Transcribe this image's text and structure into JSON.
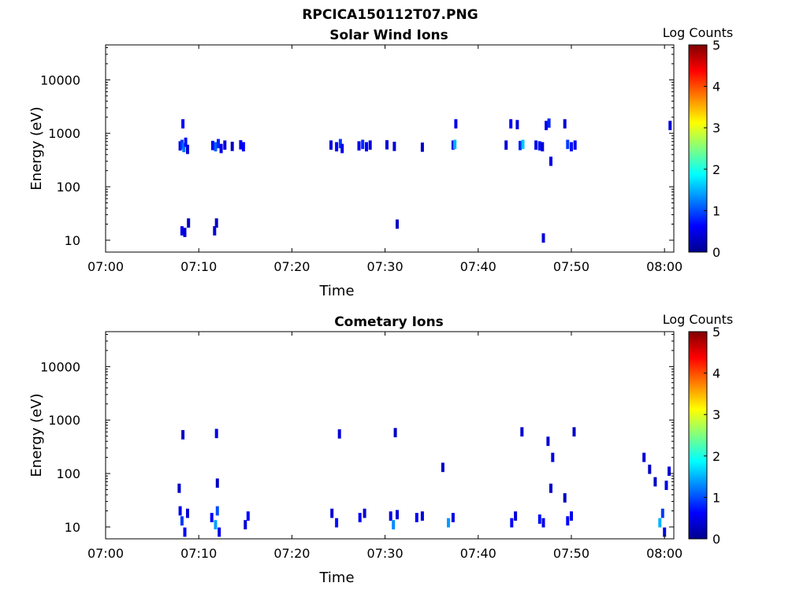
{
  "figure": {
    "title": "RPCICA150112T07.PNG"
  },
  "chart_data": [
    {
      "type": "heatmap",
      "title": "Solar Wind Ions",
      "xlabel": "Time",
      "ylabel": "Energy (eV)",
      "x_ticks": [
        "07:00",
        "07:10",
        "07:20",
        "07:30",
        "07:40",
        "07:50",
        "08:00"
      ],
      "x_range_minutes": [
        0,
        61
      ],
      "y_scale": "log",
      "y_ticks": [
        10,
        100,
        1000,
        10000
      ],
      "y_tick_labels": [
        "10",
        "100",
        "1000",
        "10000"
      ],
      "y_range": [
        6,
        45000
      ],
      "colorbar": {
        "label": "Log Counts",
        "range": [
          0,
          5
        ],
        "ticks": [
          "0",
          "1",
          "2",
          "3",
          "4",
          "5"
        ]
      },
      "grid": false,
      "points": [
        {
          "t": 8.0,
          "e": 580,
          "v": 0.5
        },
        {
          "t": 8.2,
          "e": 620,
          "v": 0.9
        },
        {
          "t": 8.4,
          "e": 540,
          "v": 1.2
        },
        {
          "t": 8.6,
          "e": 680,
          "v": 0.7
        },
        {
          "t": 8.8,
          "e": 500,
          "v": 0.4
        },
        {
          "t": 8.3,
          "e": 1500,
          "v": 0.6
        },
        {
          "t": 8.2,
          "e": 15,
          "v": 0.5
        },
        {
          "t": 8.5,
          "e": 14,
          "v": 0.4
        },
        {
          "t": 8.9,
          "e": 21,
          "v": 0.3
        },
        {
          "t": 11.5,
          "e": 590,
          "v": 0.6
        },
        {
          "t": 11.8,
          "e": 560,
          "v": 1.1
        },
        {
          "t": 12.1,
          "e": 640,
          "v": 0.8
        },
        {
          "t": 12.4,
          "e": 520,
          "v": 0.5
        },
        {
          "t": 12.8,
          "e": 600,
          "v": 0.4
        },
        {
          "t": 11.7,
          "e": 15,
          "v": 0.4
        },
        {
          "t": 11.9,
          "e": 21,
          "v": 0.3
        },
        {
          "t": 13.6,
          "e": 570,
          "v": 0.3
        },
        {
          "t": 14.5,
          "e": 610,
          "v": 0.5
        },
        {
          "t": 14.8,
          "e": 560,
          "v": 0.6
        },
        {
          "t": 24.2,
          "e": 600,
          "v": 0.4
        },
        {
          "t": 24.8,
          "e": 560,
          "v": 0.6
        },
        {
          "t": 25.2,
          "e": 640,
          "v": 0.9
        },
        {
          "t": 25.4,
          "e": 520,
          "v": 0.5
        },
        {
          "t": 27.2,
          "e": 580,
          "v": 0.5
        },
        {
          "t": 27.6,
          "e": 620,
          "v": 0.8
        },
        {
          "t": 28.0,
          "e": 560,
          "v": 0.6
        },
        {
          "t": 28.4,
          "e": 600,
          "v": 0.4
        },
        {
          "t": 30.2,
          "e": 610,
          "v": 0.4
        },
        {
          "t": 31.0,
          "e": 570,
          "v": 0.4
        },
        {
          "t": 31.3,
          "e": 20,
          "v": 0.3
        },
        {
          "t": 34.0,
          "e": 550,
          "v": 0.3
        },
        {
          "t": 37.3,
          "e": 600,
          "v": 0.7
        },
        {
          "t": 37.5,
          "e": 620,
          "v": 1.5
        },
        {
          "t": 37.6,
          "e": 1500,
          "v": 0.5
        },
        {
          "t": 43.0,
          "e": 600,
          "v": 0.4
        },
        {
          "t": 43.5,
          "e": 1500,
          "v": 0.6
        },
        {
          "t": 44.2,
          "e": 1450,
          "v": 0.4
        },
        {
          "t": 44.5,
          "e": 590,
          "v": 0.8
        },
        {
          "t": 44.8,
          "e": 620,
          "v": 1.6
        },
        {
          "t": 46.2,
          "e": 600,
          "v": 0.5
        },
        {
          "t": 46.6,
          "e": 580,
          "v": 0.7
        },
        {
          "t": 46.9,
          "e": 560,
          "v": 0.4
        },
        {
          "t": 47.0,
          "e": 11,
          "v": 0.4
        },
        {
          "t": 47.3,
          "e": 1400,
          "v": 0.5
        },
        {
          "t": 47.6,
          "e": 1550,
          "v": 0.8
        },
        {
          "t": 47.8,
          "e": 300,
          "v": 0.5
        },
        {
          "t": 49.3,
          "e": 1500,
          "v": 0.4
        },
        {
          "t": 49.6,
          "e": 620,
          "v": 0.9
        },
        {
          "t": 50.0,
          "e": 560,
          "v": 0.7
        },
        {
          "t": 50.4,
          "e": 600,
          "v": 0.5
        },
        {
          "t": 60.6,
          "e": 1400,
          "v": 0.4
        }
      ]
    },
    {
      "type": "heatmap",
      "title": "Cometary Ions",
      "xlabel": "Time",
      "ylabel": "Energy (eV)",
      "x_ticks": [
        "07:00",
        "07:10",
        "07:20",
        "07:30",
        "07:40",
        "07:50",
        "08:00"
      ],
      "x_range_minutes": [
        0,
        61
      ],
      "y_scale": "log",
      "y_ticks": [
        10,
        100,
        1000,
        10000
      ],
      "y_tick_labels": [
        "10",
        "100",
        "1000",
        "10000"
      ],
      "y_range": [
        6,
        45000
      ],
      "colorbar": {
        "label": "Log Counts",
        "range": [
          0,
          5
        ],
        "ticks": [
          "0",
          "1",
          "2",
          "3",
          "4",
          "5"
        ]
      },
      "grid": false,
      "points": [
        {
          "t": 8.0,
          "e": 20,
          "v": 0.5
        },
        {
          "t": 8.2,
          "e": 13,
          "v": 0.9
        },
        {
          "t": 8.5,
          "e": 8,
          "v": 0.6
        },
        {
          "t": 8.8,
          "e": 18,
          "v": 0.4
        },
        {
          "t": 8.3,
          "e": 530,
          "v": 0.3
        },
        {
          "t": 7.9,
          "e": 53,
          "v": 0.3
        },
        {
          "t": 11.4,
          "e": 15,
          "v": 0.6
        },
        {
          "t": 11.8,
          "e": 11,
          "v": 1.4
        },
        {
          "t": 12.0,
          "e": 20,
          "v": 1.0
        },
        {
          "t": 12.2,
          "e": 8,
          "v": 0.5
        },
        {
          "t": 11.9,
          "e": 560,
          "v": 0.5
        },
        {
          "t": 12.0,
          "e": 66,
          "v": 0.3
        },
        {
          "t": 15.0,
          "e": 11,
          "v": 0.4
        },
        {
          "t": 15.3,
          "e": 16,
          "v": 0.6
        },
        {
          "t": 24.3,
          "e": 18,
          "v": 0.4
        },
        {
          "t": 24.8,
          "e": 12,
          "v": 0.7
        },
        {
          "t": 25.1,
          "e": 550,
          "v": 0.4
        },
        {
          "t": 27.3,
          "e": 15,
          "v": 0.6
        },
        {
          "t": 27.8,
          "e": 18,
          "v": 0.4
        },
        {
          "t": 30.6,
          "e": 16,
          "v": 0.5
        },
        {
          "t": 30.9,
          "e": 11,
          "v": 1.3
        },
        {
          "t": 31.1,
          "e": 580,
          "v": 0.3
        },
        {
          "t": 31.3,
          "e": 17,
          "v": 0.4
        },
        {
          "t": 33.4,
          "e": 15,
          "v": 0.6
        },
        {
          "t": 34.0,
          "e": 16,
          "v": 0.4
        },
        {
          "t": 36.2,
          "e": 130,
          "v": 0.3
        },
        {
          "t": 36.8,
          "e": 12,
          "v": 1.4
        },
        {
          "t": 37.3,
          "e": 15,
          "v": 0.5
        },
        {
          "t": 43.6,
          "e": 12,
          "v": 0.6
        },
        {
          "t": 44.0,
          "e": 16,
          "v": 0.4
        },
        {
          "t": 44.7,
          "e": 600,
          "v": 0.4
        },
        {
          "t": 46.6,
          "e": 14,
          "v": 0.7
        },
        {
          "t": 47.0,
          "e": 12,
          "v": 0.5
        },
        {
          "t": 47.5,
          "e": 400,
          "v": 0.4
        },
        {
          "t": 48.0,
          "e": 200,
          "v": 0.5
        },
        {
          "t": 47.8,
          "e": 53,
          "v": 0.3
        },
        {
          "t": 49.3,
          "e": 35,
          "v": 0.3
        },
        {
          "t": 49.6,
          "e": 13,
          "v": 0.6
        },
        {
          "t": 50.0,
          "e": 16,
          "v": 0.5
        },
        {
          "t": 50.3,
          "e": 600,
          "v": 0.3
        },
        {
          "t": 57.8,
          "e": 200,
          "v": 0.4
        },
        {
          "t": 58.4,
          "e": 120,
          "v": 0.3
        },
        {
          "t": 59.0,
          "e": 70,
          "v": 0.3
        },
        {
          "t": 59.5,
          "e": 12,
          "v": 1.5
        },
        {
          "t": 59.8,
          "e": 18,
          "v": 0.9
        },
        {
          "t": 60.0,
          "e": 8,
          "v": 0.5
        },
        {
          "t": 60.2,
          "e": 60,
          "v": 0.5
        },
        {
          "t": 60.5,
          "e": 110,
          "v": 0.4
        }
      ]
    }
  ]
}
